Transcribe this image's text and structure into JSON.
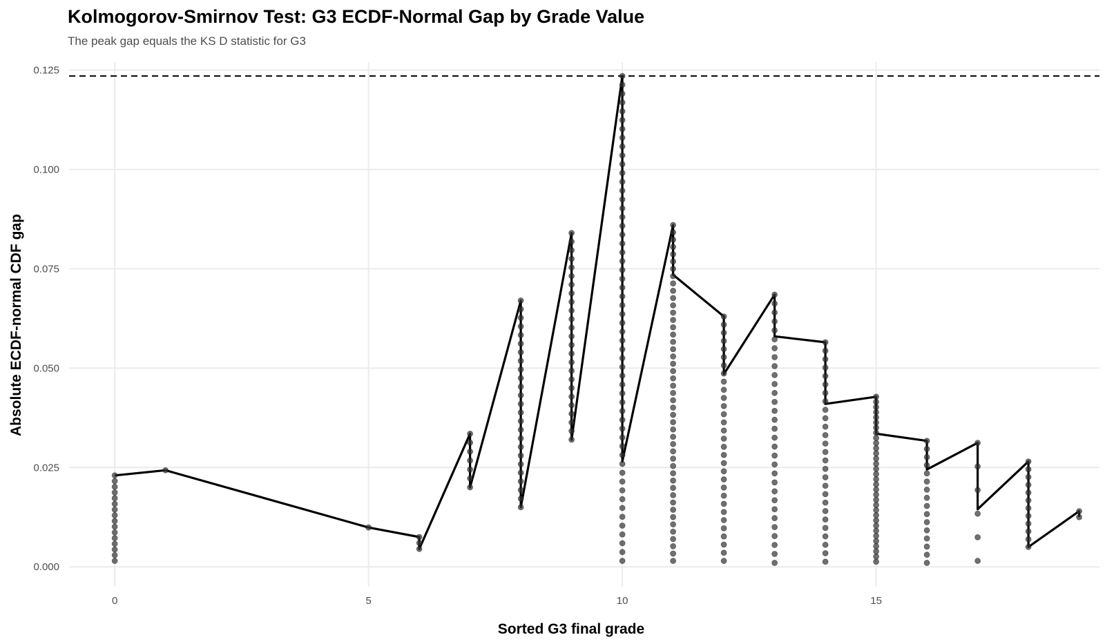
{
  "chart_data": {
    "type": "scatter",
    "title": "Kolmogorov-Smirnov Test: G3 ECDF-Normal Gap by Grade Value",
    "subtitle": "The peak gap equals the KS D statistic for G3",
    "xlabel": "Sorted G3 final grade",
    "ylabel": "Absolute ECDF-normal CDF gap",
    "xlim": [
      -0.9,
      19.4
    ],
    "ylim": [
      -0.005,
      0.127
    ],
    "x_ticks": [
      0,
      5,
      10,
      15
    ],
    "x_tick_labels": [
      "0",
      "5",
      "10",
      "15"
    ],
    "y_ticks": [
      0.0,
      0.025,
      0.05,
      0.075,
      0.1,
      0.125
    ],
    "y_tick_labels": [
      "0.000",
      "0.025",
      "0.050",
      "0.075",
      "0.100",
      "0.125"
    ],
    "grid": true,
    "ks_statistic": 0.1235,
    "series": [
      {
        "values": [
          {
            "x": 0,
            "min": 0.0015,
            "max": 0.023,
            "count": 16
          },
          {
            "x": 1,
            "min": 0.0243,
            "max": 0.0243,
            "count": 1
          },
          {
            "x": 5,
            "min": 0.0099,
            "max": 0.0099,
            "count": 1
          },
          {
            "x": 6,
            "min": 0.0045,
            "max": 0.0075,
            "count": 3
          },
          {
            "x": 7,
            "min": 0.02,
            "max": 0.0335,
            "count": 7
          },
          {
            "x": 8,
            "min": 0.015,
            "max": 0.067,
            "count": 25
          },
          {
            "x": 9,
            "min": 0.032,
            "max": 0.084,
            "count": 25
          },
          {
            "x": 10,
            "min": 0.0015,
            "max": 0.1235,
            "count": 56
          },
          {
            "x": 11,
            "min": 0.0015,
            "max": 0.086,
            "count": 47
          },
          {
            "x": 12,
            "min": 0.0015,
            "max": 0.063,
            "count": 31
          },
          {
            "x": 13,
            "min": 0.001,
            "max": 0.0685,
            "count": 31
          },
          {
            "x": 14,
            "min": 0.0013,
            "max": 0.0565,
            "count": 27
          },
          {
            "x": 15,
            "min": 0.0013,
            "max": 0.0428,
            "count": 33
          },
          {
            "x": 16,
            "min": 0.001,
            "max": 0.0317,
            "count": 16
          },
          {
            "x": 17,
            "min": 0.0015,
            "max": 0.0312,
            "count": 6
          },
          {
            "x": 18,
            "min": 0.005,
            "max": 0.0265,
            "count": 12
          },
          {
            "x": 19,
            "min": 0.0125,
            "max": 0.014,
            "count": 2
          }
        ]
      }
    ],
    "line": [
      {
        "x": 0,
        "y": 0.023
      },
      {
        "x": 1,
        "y": 0.0243
      },
      {
        "x": 5,
        "y": 0.0099
      },
      {
        "x": 6,
        "y": 0.0075
      },
      {
        "x": 6,
        "y": 0.0045
      },
      {
        "x": 7,
        "y": 0.0335
      },
      {
        "x": 7,
        "y": 0.02
      },
      {
        "x": 8,
        "y": 0.067
      },
      {
        "x": 8,
        "y": 0.015
      },
      {
        "x": 9,
        "y": 0.084
      },
      {
        "x": 9,
        "y": 0.032
      },
      {
        "x": 10,
        "y": 0.1235
      },
      {
        "x": 10,
        "y": 0.0265
      },
      {
        "x": 11,
        "y": 0.086
      },
      {
        "x": 11,
        "y": 0.0735
      },
      {
        "x": 12,
        "y": 0.063
      },
      {
        "x": 12,
        "y": 0.0485
      },
      {
        "x": 13,
        "y": 0.0685
      },
      {
        "x": 13,
        "y": 0.058
      },
      {
        "x": 14,
        "y": 0.0565
      },
      {
        "x": 14,
        "y": 0.041
      },
      {
        "x": 15,
        "y": 0.0428
      },
      {
        "x": 15,
        "y": 0.0335
      },
      {
        "x": 16,
        "y": 0.0317
      },
      {
        "x": 16,
        "y": 0.0245
      },
      {
        "x": 17,
        "y": 0.0312
      },
      {
        "x": 17,
        "y": 0.0145
      },
      {
        "x": 18,
        "y": 0.0265
      },
      {
        "x": 18,
        "y": 0.005
      },
      {
        "x": 19,
        "y": 0.014
      },
      {
        "x": 19,
        "y": 0.0125
      }
    ],
    "colors": {
      "points": "#333333",
      "line": "#000000",
      "reference_line": "#000000",
      "grid": "#ebebeb",
      "tick_text": "#4d4d4d"
    }
  }
}
